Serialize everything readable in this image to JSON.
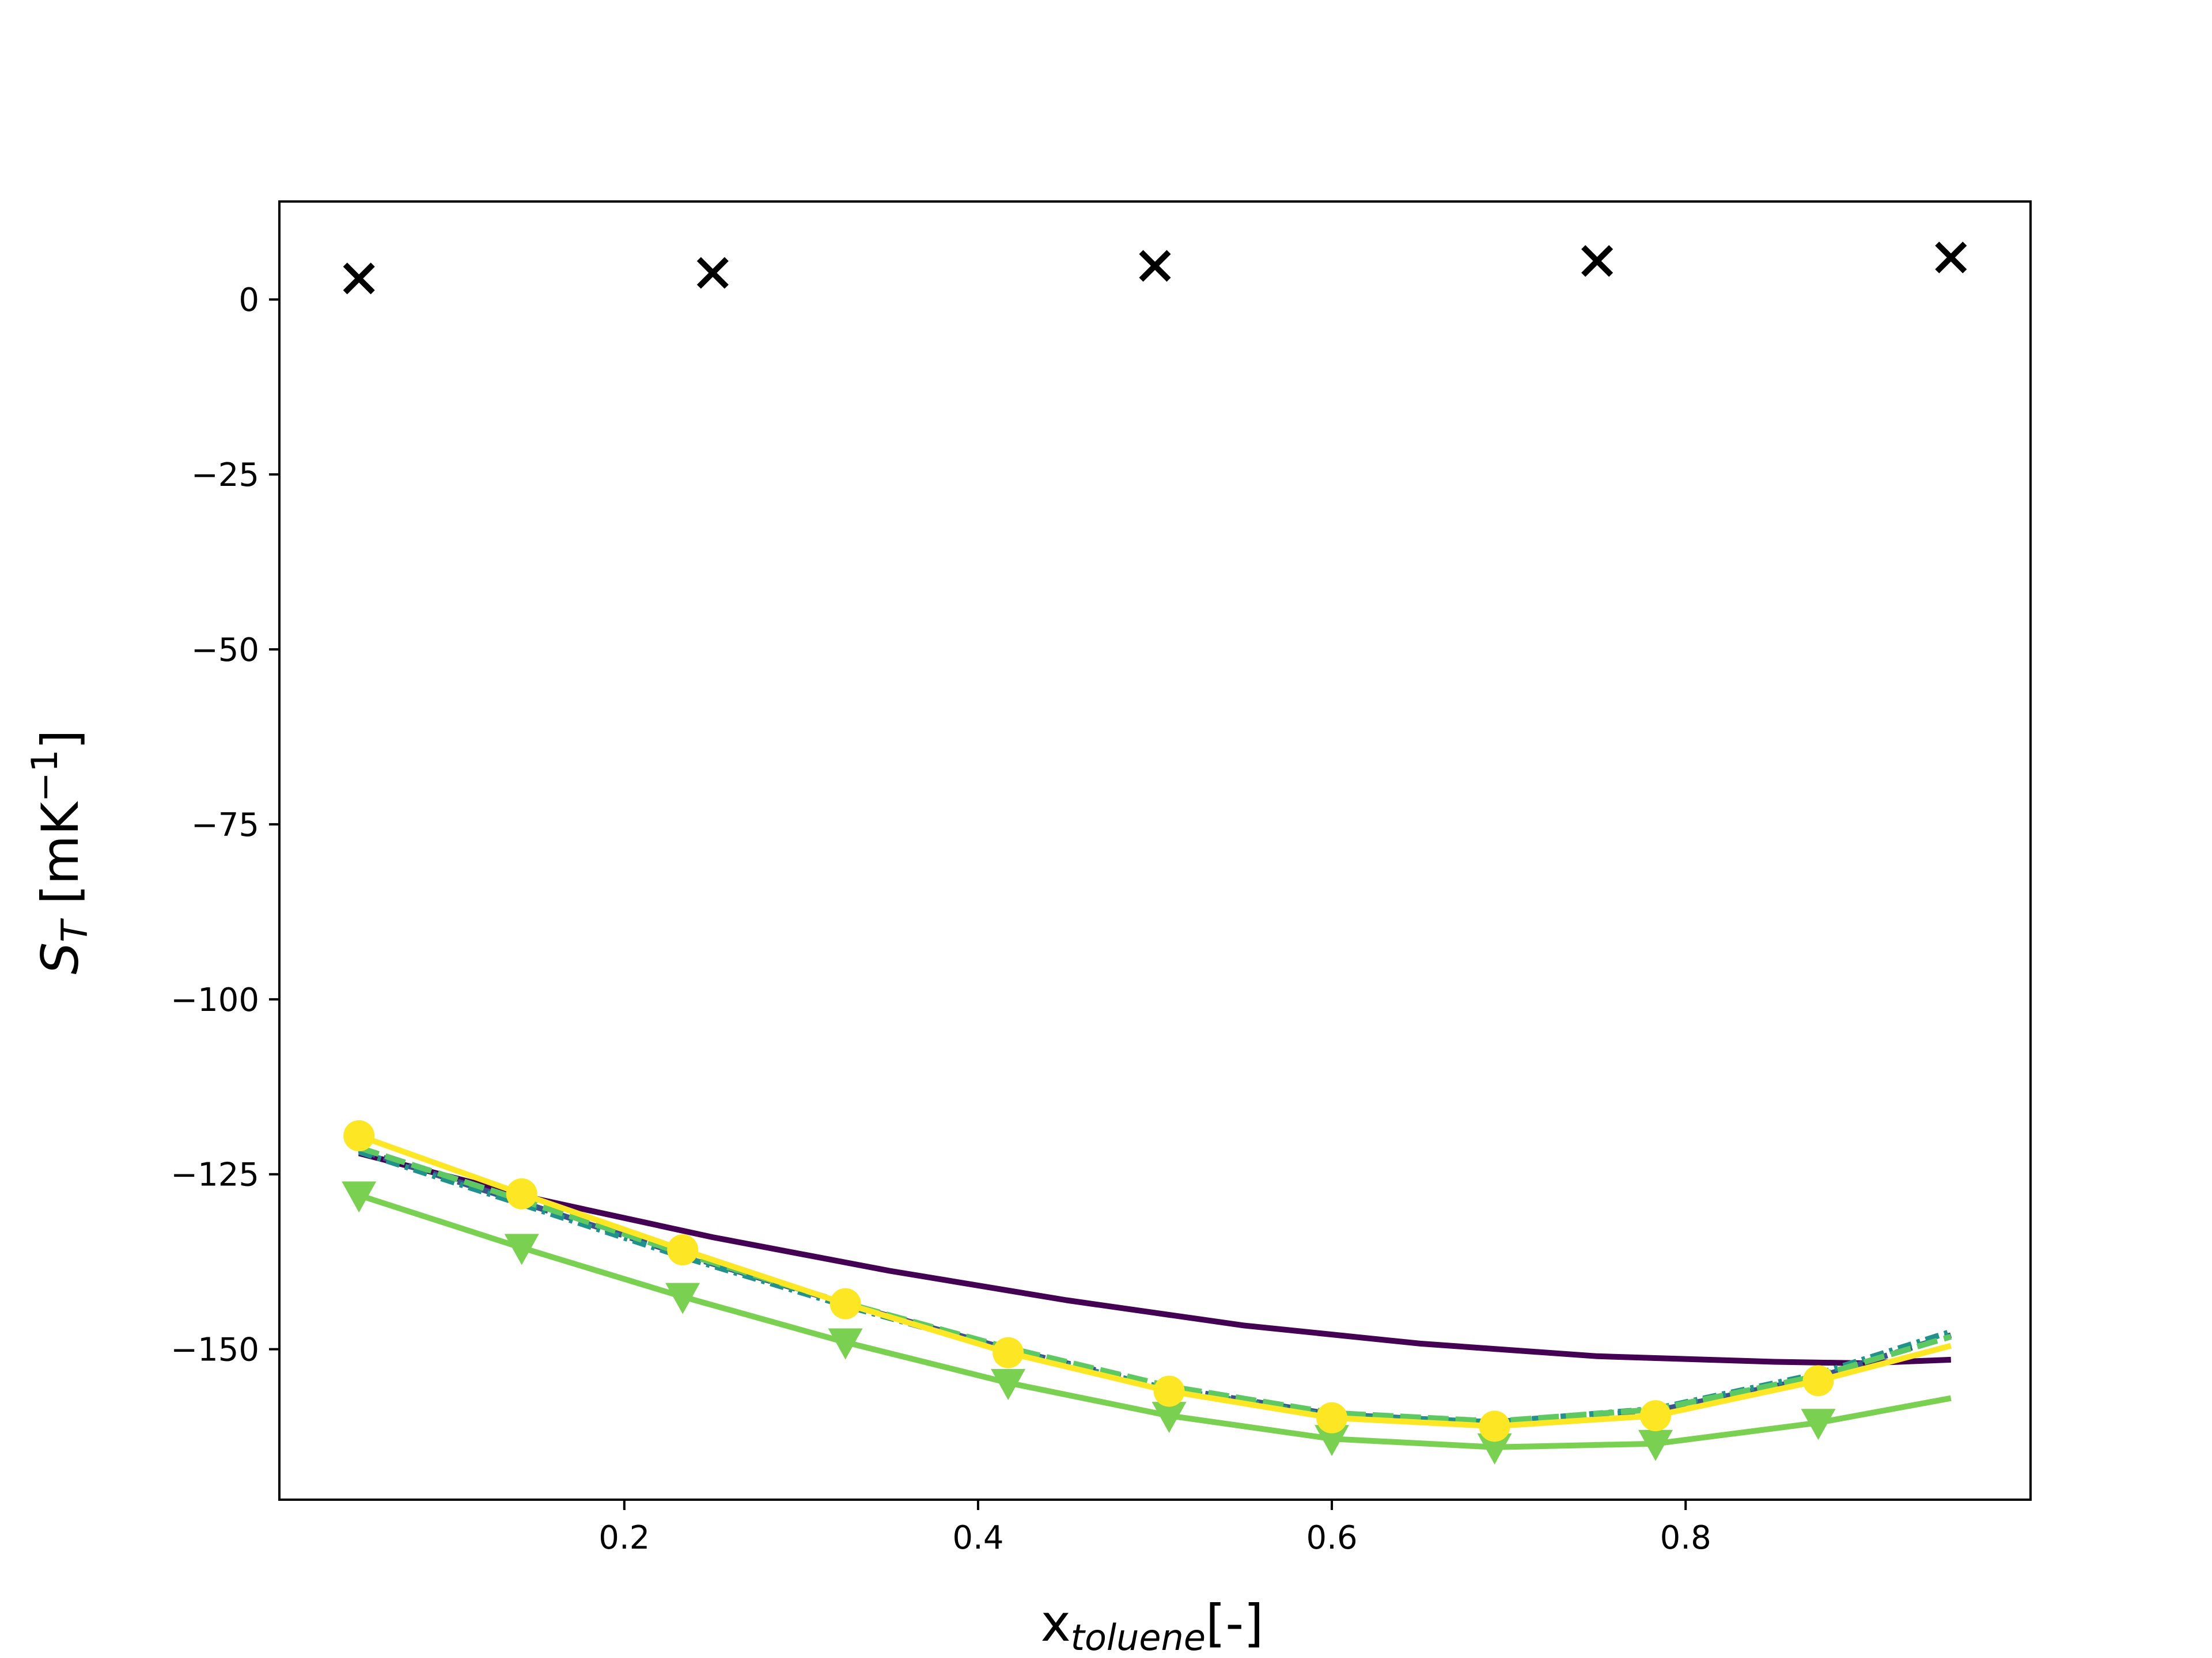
{
  "chart_data": {
    "type": "line",
    "xlabel": {
      "base": "x",
      "sub": "toluene",
      "suffix": "[-]"
    },
    "ylabel": {
      "base": "S",
      "sub": "T",
      "suffix_pre": " [mK",
      "sup": "−1",
      "suffix_post": "]"
    },
    "xlim": [
      0.005,
      0.995
    ],
    "ylim": [
      -171.5,
      14
    ],
    "x_ticks": [
      0.2,
      0.4,
      0.6,
      0.8
    ],
    "x_tick_labels": [
      "0.2",
      "0.4",
      "0.6",
      "0.8"
    ],
    "y_ticks": [
      0,
      -25,
      -50,
      -75,
      -100,
      -125,
      -150
    ],
    "y_tick_labels": [
      "0",
      "−25",
      "−50",
      "−75",
      "−100",
      "−125",
      "−150"
    ],
    "grid": false,
    "series": [
      {
        "style": "markers",
        "marker": "x",
        "color": "#000000",
        "x": [
          0.05,
          0.25,
          0.5,
          0.75,
          0.95
        ],
        "y": [
          3,
          3.8,
          4.8,
          5.5,
          6
        ]
      },
      {
        "style": "line",
        "color": "#440154",
        "dash": "",
        "x": [
          0.05,
          0.15,
          0.25,
          0.35,
          0.45,
          0.55,
          0.65,
          0.75,
          0.85,
          0.9,
          0.95
        ],
        "y": [
          -122,
          -128.5,
          -134,
          -138.8,
          -143,
          -146.6,
          -149.2,
          -151,
          -151.8,
          -152,
          -151.5
        ]
      },
      {
        "style": "line",
        "color": "#3b528b",
        "dash": "30,15",
        "x": [
          0.05,
          0.142,
          0.233,
          0.325,
          0.417,
          0.508,
          0.6,
          0.692,
          0.783,
          0.875,
          0.95
        ],
        "y": [
          -121.5,
          -129,
          -136.5,
          -143.5,
          -150,
          -155.5,
          -159.3,
          -160.5,
          -158.8,
          -154,
          -148
        ]
      },
      {
        "style": "line",
        "color": "#21918c",
        "dash": "24,10,6,10",
        "x": [
          0.05,
          0.142,
          0.233,
          0.325,
          0.417,
          0.508,
          0.6,
          0.692,
          0.783,
          0.875,
          0.95
        ],
        "y": [
          -121.8,
          -129.3,
          -136.8,
          -143.8,
          -150.2,
          -155.7,
          -159.5,
          -160.4,
          -158.5,
          -153.5,
          -147.5
        ]
      },
      {
        "style": "line",
        "color": "#5ec962",
        "dash": "36,12",
        "x": [
          0.05,
          0.142,
          0.233,
          0.325,
          0.417,
          0.508,
          0.6,
          0.692,
          0.783,
          0.875,
          0.95
        ],
        "y": [
          -121.2,
          -128.7,
          -136.3,
          -143.4,
          -149.8,
          -155.3,
          -159.1,
          -160.3,
          -158.6,
          -153.8,
          -148.2
        ]
      },
      {
        "style": "line+markers",
        "marker": "triangle-down",
        "color": "#7ad151",
        "x": [
          0.05,
          0.142,
          0.233,
          0.325,
          0.417,
          0.508,
          0.6,
          0.692,
          0.783,
          0.875,
          0.95
        ],
        "y": [
          -128,
          -135.5,
          -142.5,
          -149,
          -154.8,
          -159.5,
          -162.8,
          -164,
          -163.5,
          -160.5,
          -157
        ],
        "marker_x": [
          0.05,
          0.142,
          0.233,
          0.325,
          0.417,
          0.508,
          0.6,
          0.692,
          0.783,
          0.875
        ],
        "marker_y": [
          -128,
          -135.5,
          -142.5,
          -149,
          -154.8,
          -159.5,
          -162.8,
          -164,
          -163.5,
          -160.5
        ]
      },
      {
        "style": "line+markers",
        "marker": "circle",
        "color": "#fde725",
        "x": [
          0.05,
          0.142,
          0.233,
          0.325,
          0.417,
          0.508,
          0.6,
          0.692,
          0.783,
          0.875,
          0.95
        ],
        "y": [
          -119.5,
          -127.8,
          -135.8,
          -143.5,
          -150.5,
          -156,
          -159.8,
          -161,
          -159.5,
          -154.5,
          -149.5
        ],
        "marker_x": [
          0.05,
          0.142,
          0.233,
          0.325,
          0.417,
          0.508,
          0.6,
          0.692,
          0.783,
          0.875
        ],
        "marker_y": [
          -119.5,
          -127.8,
          -135.8,
          -143.5,
          -150.5,
          -156,
          -159.8,
          -161,
          -159.5,
          -154.5
        ]
      }
    ]
  }
}
